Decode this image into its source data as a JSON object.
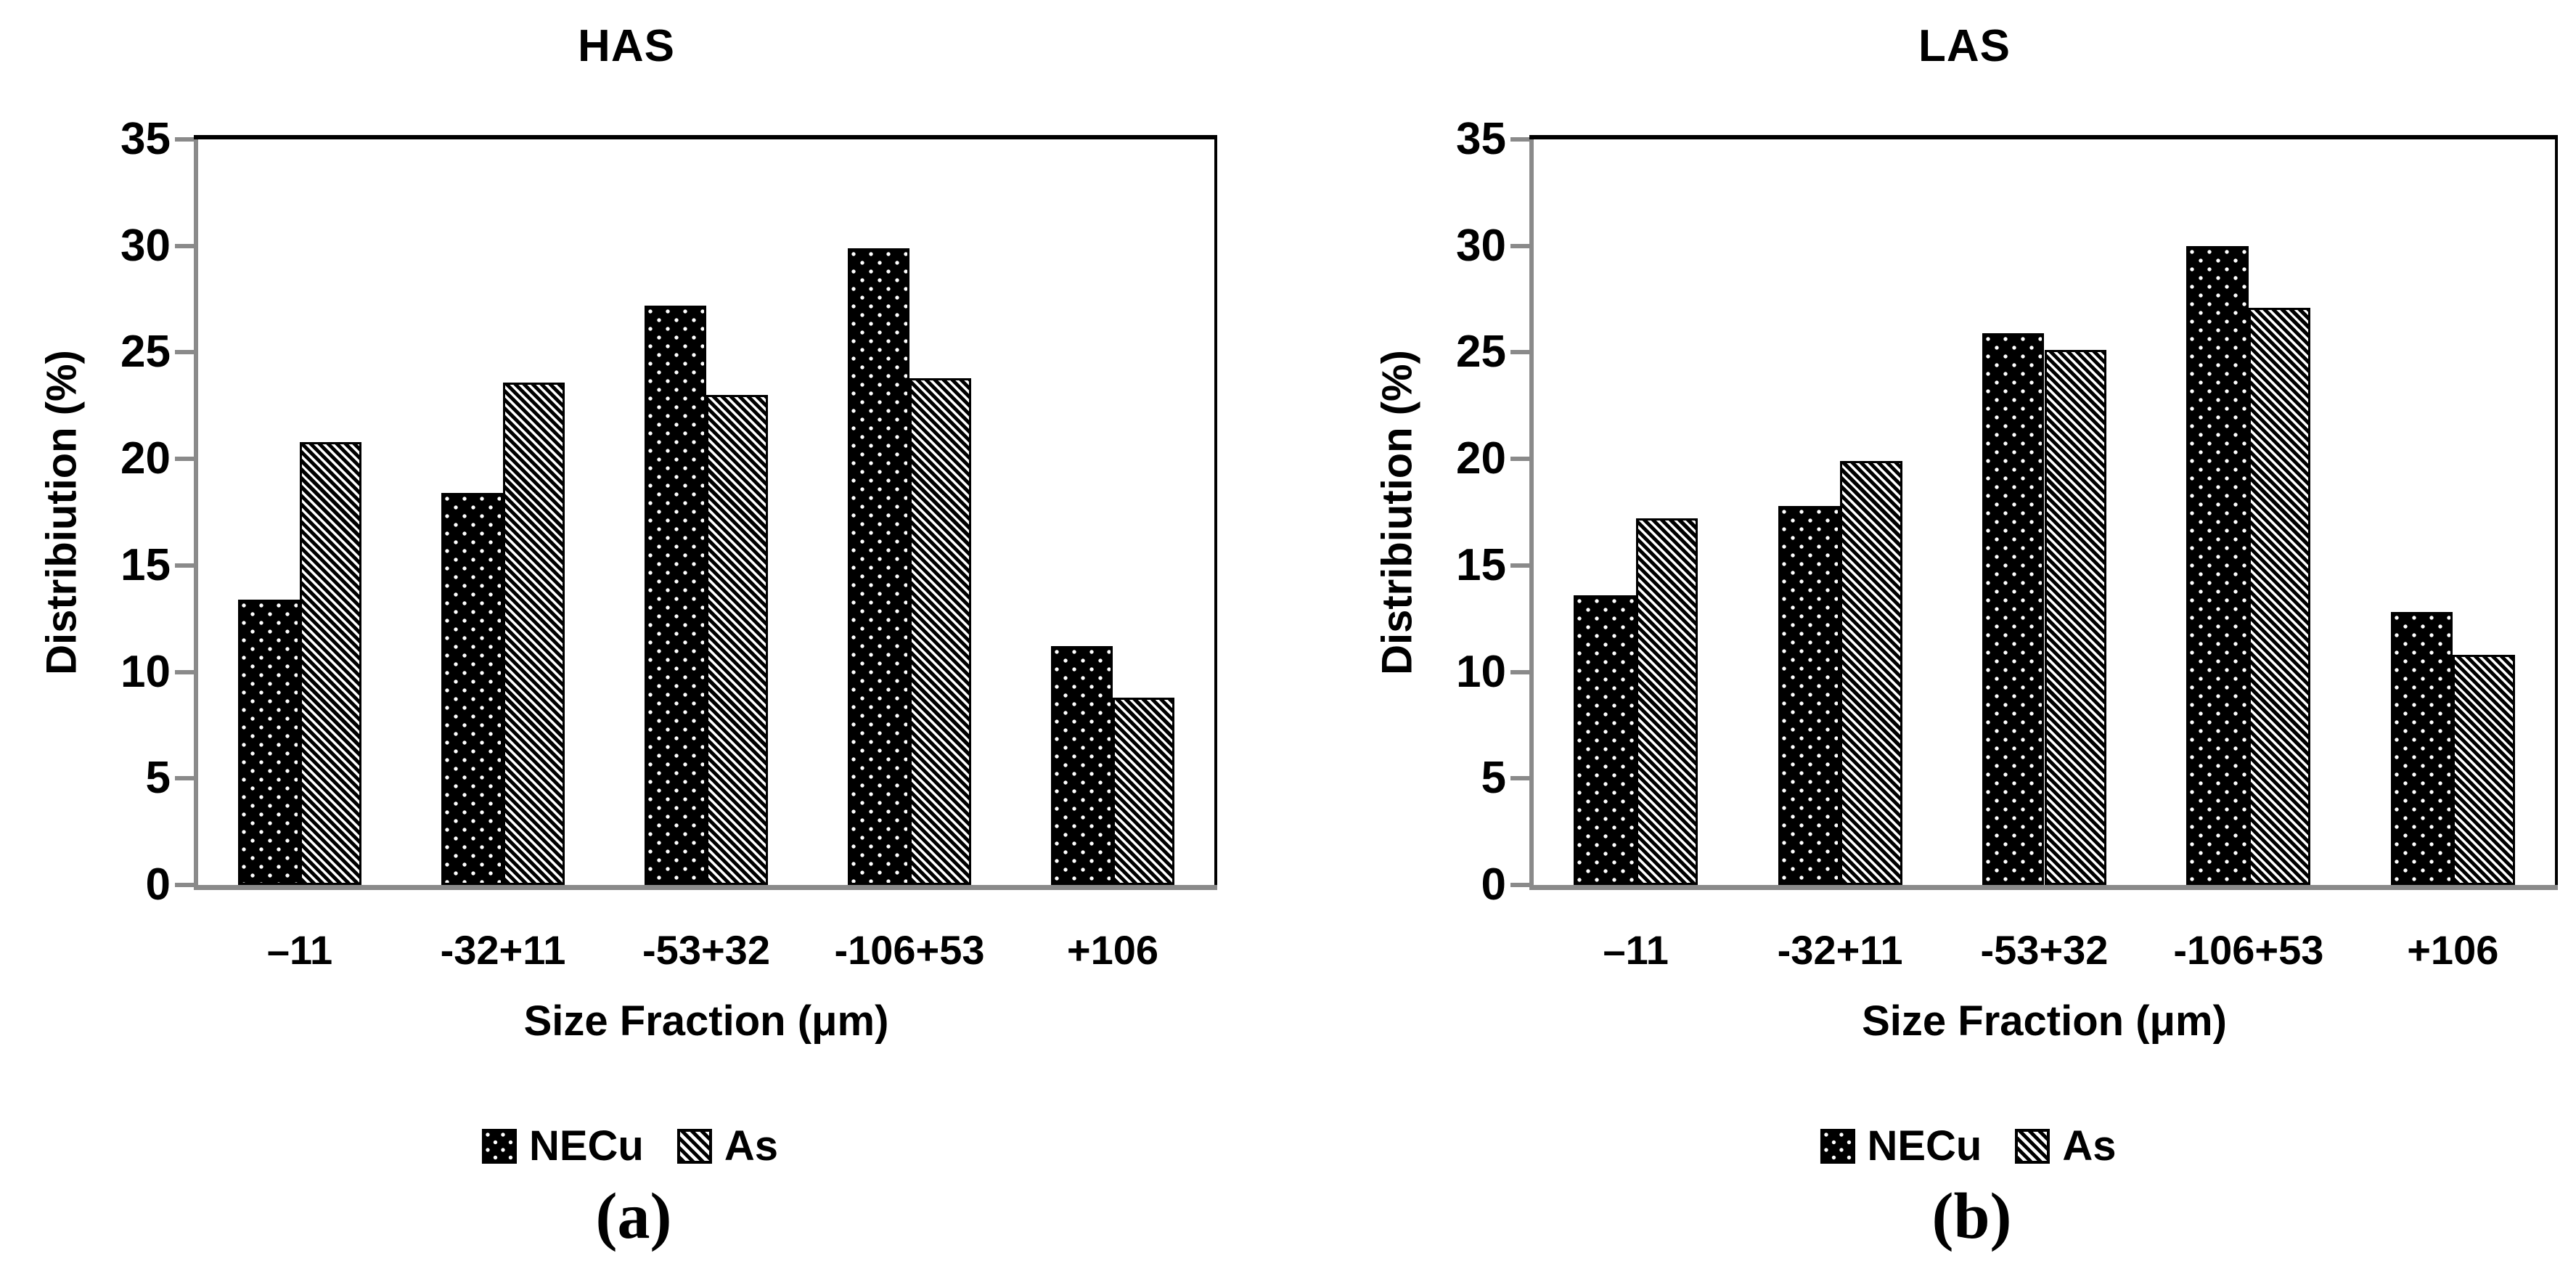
{
  "chart_data": [
    {
      "type": "bar",
      "title": "HAS",
      "categories": [
        "–11",
        "-32+11",
        "-53+32",
        "-106+53",
        "+106"
      ],
      "series": [
        {
          "name": "NECu",
          "pattern": "white-dots-on-black",
          "values": [
            13.4,
            18.4,
            27.2,
            29.9,
            11.2
          ]
        },
        {
          "name": "As",
          "pattern": "black-diagonal-stripes-on-white",
          "values": [
            20.8,
            23.6,
            23.0,
            23.8,
            8.8
          ]
        }
      ],
      "xlabel": "Size Fraction (μm)",
      "ylabel": "Distribiution (%)",
      "ylim": [
        0,
        35
      ],
      "yticks": [
        0,
        5,
        10,
        15,
        20,
        25,
        30,
        35
      ],
      "grid": false,
      "legend_position": "bottom",
      "caption": "(a)"
    },
    {
      "type": "bar",
      "title": "LAS",
      "categories": [
        "–11",
        "-32+11",
        "-53+32",
        "-106+53",
        "+106"
      ],
      "series": [
        {
          "name": "NECu",
          "pattern": "white-dots-on-black",
          "values": [
            13.6,
            17.8,
            25.9,
            30.0,
            12.8
          ]
        },
        {
          "name": "As",
          "pattern": "black-diagonal-stripes-on-white",
          "values": [
            17.2,
            19.9,
            25.1,
            27.1,
            10.8
          ]
        }
      ],
      "xlabel": "Size Fraction (μm)",
      "ylabel": "Distribiution (%)",
      "ylim": [
        0,
        35
      ],
      "yticks": [
        0,
        5,
        10,
        15,
        20,
        25,
        30,
        35
      ],
      "grid": false,
      "legend_position": "bottom",
      "caption": "(b)"
    }
  ],
  "colors": {
    "bar_fill": "#000000",
    "bar_background": "#ffffff",
    "axis_gray": "#8a8a8a",
    "frame_black": "#000000",
    "text": "#000000"
  }
}
